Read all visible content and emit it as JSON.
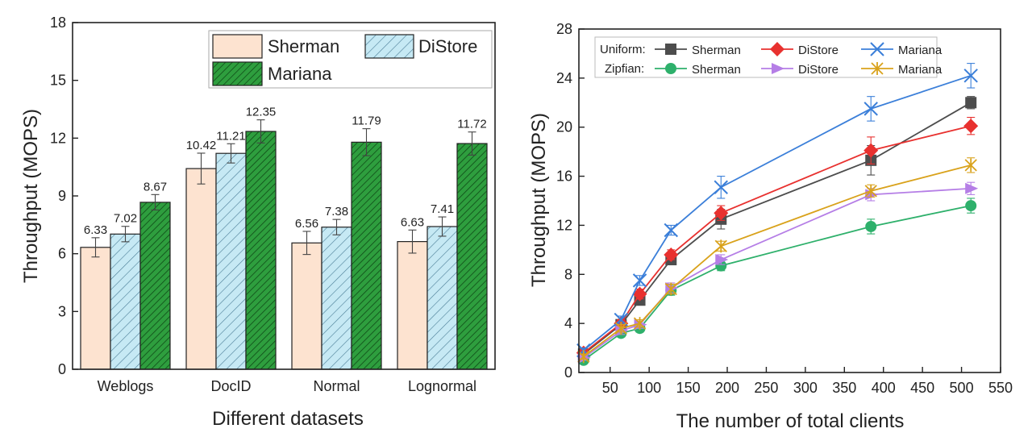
{
  "chart_data": [
    {
      "type": "bar",
      "xlabel": "Different datasets",
      "ylabel": "Throughput (MOPS)",
      "ylim": [
        0,
        18
      ],
      "yticks": [
        "0",
        "3",
        "6",
        "9",
        "12",
        "15",
        "18"
      ],
      "categories": [
        "Weblogs",
        "DocID",
        "Normal",
        "Lognormal"
      ],
      "legend_position": "top-right",
      "series": [
        {
          "name": "Sherman",
          "values": [
            6.33,
            10.42,
            6.56,
            6.63
          ],
          "errors": [
            0.5,
            0.8,
            0.6,
            0.6
          ],
          "labels": [
            "6.33",
            "10.42",
            "6.56",
            "6.63"
          ],
          "color": "#fde3d0",
          "hatch": "none"
        },
        {
          "name": "DiStore",
          "values": [
            7.02,
            11.21,
            7.38,
            7.41
          ],
          "errors": [
            0.4,
            0.5,
            0.4,
            0.5
          ],
          "labels": [
            "7.02",
            "11.21",
            "7.38",
            "7.41"
          ],
          "color": "#c6e9f4",
          "hatch": "sparse"
        },
        {
          "name": "Mariana",
          "values": [
            8.67,
            12.35,
            11.79,
            11.72
          ],
          "errors": [
            0.4,
            0.6,
            0.7,
            0.6
          ],
          "labels": [
            "8.67",
            "12.35",
            "11.79",
            "11.72"
          ],
          "color": "#2e9e3e",
          "hatch": "dense"
        }
      ]
    },
    {
      "type": "line",
      "xlabel": "The number of total clients",
      "ylabel": "Throughput (MOPS)",
      "xlim": [
        10,
        550
      ],
      "ylim": [
        0,
        28
      ],
      "xticks": [
        "50",
        "100",
        "150",
        "200",
        "250",
        "300",
        "350",
        "400",
        "450",
        "500",
        "550"
      ],
      "yticks": [
        "0",
        "4",
        "8",
        "12",
        "16",
        "20",
        "24",
        "28"
      ],
      "x": [
        16,
        64,
        88,
        128,
        192,
        384,
        512
      ],
      "legend_groups": [
        "Uniform:",
        "Zipfian:"
      ],
      "legend_position": "top",
      "series": [
        {
          "name": "Sherman",
          "group": "Uniform:",
          "marker": "square",
          "color": "#4d4d4d",
          "values": [
            1.5,
            3.9,
            5.9,
            9.2,
            12.5,
            17.3,
            22.0
          ],
          "errors": [
            0.2,
            0.3,
            0.4,
            0.4,
            0.8,
            1.2,
            0.5
          ]
        },
        {
          "name": "DiStore",
          "group": "Uniform:",
          "marker": "diamond",
          "color": "#e8312f",
          "values": [
            1.6,
            4.0,
            6.4,
            9.6,
            13.0,
            18.1,
            20.1
          ],
          "errors": [
            0.2,
            0.3,
            0.4,
            0.4,
            0.6,
            1.1,
            0.7
          ]
        },
        {
          "name": "Mariana",
          "group": "Uniform:",
          "marker": "x",
          "color": "#3b7fd9",
          "values": [
            1.8,
            4.3,
            7.5,
            11.6,
            15.1,
            21.5,
            24.2
          ],
          "errors": [
            0.2,
            0.3,
            0.4,
            0.4,
            0.9,
            1.0,
            1.0
          ]
        },
        {
          "name": "Sherman",
          "group": "Zipfian:",
          "marker": "circle",
          "color": "#2eb06b",
          "values": [
            1.0,
            3.2,
            3.6,
            6.7,
            8.7,
            11.9,
            13.6
          ],
          "errors": [
            0.2,
            0.3,
            0.3,
            0.4,
            0.4,
            0.6,
            0.6
          ]
        },
        {
          "name": "DiStore",
          "group": "Zipfian:",
          "marker": "triangle-right",
          "color": "#b57ee6",
          "values": [
            1.2,
            3.4,
            3.9,
            6.9,
            9.2,
            14.5,
            15.0
          ],
          "errors": [
            0.2,
            0.3,
            0.3,
            0.4,
            0.4,
            0.5,
            0.5
          ]
        },
        {
          "name": "Mariana",
          "group": "Zipfian:",
          "marker": "asterisk",
          "color": "#d9a21b",
          "values": [
            1.3,
            3.6,
            4.0,
            6.8,
            10.3,
            14.8,
            16.9
          ],
          "errors": [
            0.2,
            0.3,
            0.3,
            0.4,
            0.4,
            0.5,
            0.6
          ]
        }
      ]
    }
  ]
}
